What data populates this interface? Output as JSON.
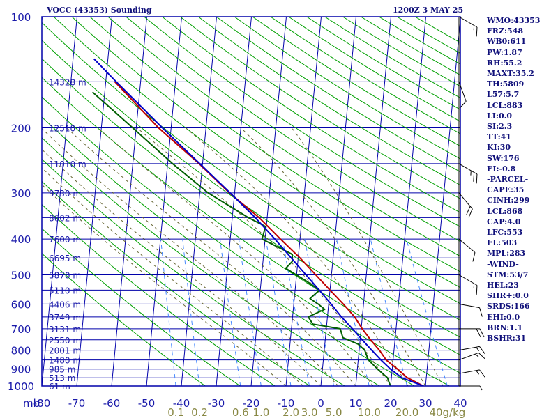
{
  "header": {
    "title": "VOCC (43353) Sounding",
    "datetime": "1200Z  3 MAY 25"
  },
  "indices": [
    "WMO:43353",
    "FRZ:548",
    "WB0:611",
    "PW:1.87",
    "RH:55.2",
    "MAXT:35.2",
    "TH:5809",
    "L57:5.7",
    "LCL:883",
    "LI:0.0",
    "SI:2.3",
    "TT:41",
    "KI:30",
    "SW:176",
    "EI:-0.8",
    "-PARCEL-",
    "CAPE:35",
    "CINH:299",
    "LCL:868",
    "CAP:4.0",
    "LFC:553",
    "EL:503",
    "MPL:283",
    "-WIND-",
    "STM:53/7",
    "HEL:23",
    "SHR+:0.0",
    "SRDS:166",
    "EHI:0.0",
    "BRN:1.1",
    "BSHR:31"
  ],
  "colors": {
    "frame": "#0000aa",
    "isobar": "#0000aa",
    "isotherm": "#0000aa",
    "dry_adiabat": "#00a000",
    "moist_adiabat": "#666633",
    "mixing_ratio": "#4488ff",
    "temperature": "#c00000",
    "dewpoint": "#006000",
    "parcel": "#0000c8",
    "wind_barb": "#000000",
    "label": "#1a1aaa",
    "mixing_label": "#888844"
  },
  "chart_data": {
    "type": "line",
    "title": "VOCC (43353) Sounding",
    "xlabel": "",
    "ylabel": "mb",
    "x_axis_unit": "°C",
    "y_axis_unit": "mb",
    "y_scale": "log",
    "y_range": [
      1000,
      100
    ],
    "x_range": [
      -80,
      40
    ],
    "pressure_ticks": [
      100,
      200,
      300,
      400,
      500,
      600,
      700,
      800,
      900,
      1000
    ],
    "temperature_ticks": [
      -80,
      -70,
      -60,
      -50,
      -40,
      -30,
      -20,
      -10,
      0,
      10,
      20,
      30,
      40
    ],
    "mixing_ratio_labels": [
      "0.1",
      "0.2",
      "0.6",
      "1.0",
      "2.0",
      "3.0",
      "5.0",
      "10.0",
      "20.0",
      "40g/kg"
    ],
    "height_labels": [
      {
        "p": 1000,
        "label": "61 m"
      },
      {
        "p": 950,
        "label": "513 m"
      },
      {
        "p": 900,
        "label": "985 m"
      },
      {
        "p": 850,
        "label": "1480 m"
      },
      {
        "p": 800,
        "label": "2001 m"
      },
      {
        "p": 750,
        "label": "2550 m"
      },
      {
        "p": 700,
        "label": "3131 m"
      },
      {
        "p": 650,
        "label": "3749 m"
      },
      {
        "p": 600,
        "label": "4406 m"
      },
      {
        "p": 550,
        "label": "5110 m"
      },
      {
        "p": 500,
        "label": "5870 m"
      },
      {
        "p": 450,
        "label": "6695 m"
      },
      {
        "p": 400,
        "label": "7600 m"
      },
      {
        "p": 350,
        "label": "8602 m"
      },
      {
        "p": 300,
        "label": "9730 m"
      },
      {
        "p": 250,
        "label": "11010 m"
      },
      {
        "p": 200,
        "label": "12510 m"
      },
      {
        "p": 150,
        "label": "14328 m"
      }
    ],
    "series": [
      {
        "key": "temperature",
        "points": [
          {
            "p": 1000,
            "t": 29.4
          },
          {
            "p": 950,
            "t": 24.6
          },
          {
            "p": 900,
            "t": 21.5
          },
          {
            "p": 850,
            "t": 18.0
          },
          {
            "p": 800,
            "t": 15.8
          },
          {
            "p": 750,
            "t": 13.0
          },
          {
            "p": 700,
            "t": 10.3
          },
          {
            "p": 650,
            "t": 7.8
          },
          {
            "p": 600,
            "t": 4.2
          },
          {
            "p": 550,
            "t": 0.0
          },
          {
            "p": 500,
            "t": -4.5
          },
          {
            "p": 450,
            "t": -9.5
          },
          {
            "p": 400,
            "t": -15.6
          },
          {
            "p": 350,
            "t": -22.3
          },
          {
            "p": 300,
            "t": -31.5
          },
          {
            "p": 250,
            "t": -41.0
          },
          {
            "p": 200,
            "t": -53.6
          },
          {
            "p": 150,
            "t": -67.4
          }
        ]
      },
      {
        "key": "dewpoint",
        "points": [
          {
            "p": 1000,
            "t": 20.0
          },
          {
            "p": 980,
            "t": 19.5
          },
          {
            "p": 950,
            "t": 18.9
          },
          {
            "p": 900,
            "t": 15.8
          },
          {
            "p": 850,
            "t": 12.9
          },
          {
            "p": 800,
            "t": 11.6
          },
          {
            "p": 770,
            "t": 9.5
          },
          {
            "p": 740,
            "t": 5.0
          },
          {
            "p": 700,
            "t": 4.0
          },
          {
            "p": 680,
            "t": -4.0
          },
          {
            "p": 650,
            "t": -5.5
          },
          {
            "p": 620,
            "t": -1.0
          },
          {
            "p": 600,
            "t": -3.0
          },
          {
            "p": 580,
            "t": -5.5
          },
          {
            "p": 550,
            "t": -3.0
          },
          {
            "p": 520,
            "t": -7.0
          },
          {
            "p": 480,
            "t": -13.3
          },
          {
            "p": 460,
            "t": -11.6
          },
          {
            "p": 440,
            "t": -11.8
          },
          {
            "p": 400,
            "t": -20.9
          },
          {
            "p": 370,
            "t": -20.2
          },
          {
            "p": 350,
            "t": -25.4
          },
          {
            "p": 300,
            "t": -37.6
          },
          {
            "p": 250,
            "t": -48.6
          },
          {
            "p": 200,
            "t": -61.0
          },
          {
            "p": 160,
            "t": -73.5
          }
        ]
      },
      {
        "key": "parcel",
        "points": [
          {
            "p": 1000,
            "t": 29.4
          },
          {
            "p": 950,
            "t": 23.0
          },
          {
            "p": 900,
            "t": 19.5
          },
          {
            "p": 850,
            "t": 16.5
          },
          {
            "p": 800,
            "t": 13.6
          },
          {
            "p": 750,
            "t": 10.6
          },
          {
            "p": 700,
            "t": 7.5
          },
          {
            "p": 650,
            "t": 4.0
          },
          {
            "p": 600,
            "t": 0.7
          },
          {
            "p": 550,
            "t": -3.1
          },
          {
            "p": 500,
            "t": -7.3
          },
          {
            "p": 450,
            "t": -12.0
          },
          {
            "p": 400,
            "t": -17.2
          },
          {
            "p": 350,
            "t": -23.4
          },
          {
            "p": 300,
            "t": -31.3
          },
          {
            "p": 250,
            "t": -40.8
          },
          {
            "p": 200,
            "t": -52.5
          },
          {
            "p": 150,
            "t": -67.0
          },
          {
            "p": 130,
            "t": -74.0
          }
        ]
      }
    ],
    "winds": [
      {
        "p": 1000,
        "dir": 270,
        "kt": 5
      },
      {
        "p": 925,
        "dir": 260,
        "kt": 15
      },
      {
        "p": 850,
        "dir": 250,
        "kt": 15
      },
      {
        "p": 800,
        "dir": 260,
        "kt": 15
      },
      {
        "p": 700,
        "dir": 270,
        "kt": 20
      },
      {
        "p": 600,
        "dir": 280,
        "kt": 10
      },
      {
        "p": 500,
        "dir": 300,
        "kt": 15
      },
      {
        "p": 400,
        "dir": 310,
        "kt": 10
      },
      {
        "p": 300,
        "dir": 320,
        "kt": 20
      },
      {
        "p": 250,
        "dir": 300,
        "kt": 25
      },
      {
        "p": 150,
        "dir": 340,
        "kt": 10
      },
      {
        "p": 100,
        "dir": 300,
        "kt": 15
      }
    ]
  }
}
